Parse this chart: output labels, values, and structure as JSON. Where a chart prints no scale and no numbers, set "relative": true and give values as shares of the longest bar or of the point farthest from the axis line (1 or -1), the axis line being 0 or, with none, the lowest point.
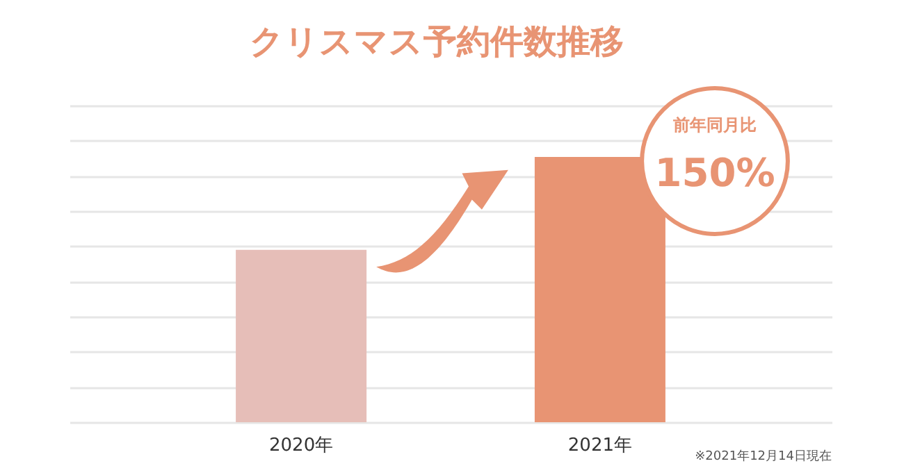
{
  "chart_data": {
    "type": "bar",
    "title": "クリスマス予約件数推移",
    "categories": [
      "2020年",
      "2021年"
    ],
    "relative": true,
    "series": [
      {
        "values": [
          0.65,
          1
        ],
        "colors": [
          "#e6beb8",
          "#e89473"
        ]
      }
    ],
    "grid": "y",
    "annotations": [
      "前年同月比",
      "150%",
      "※2021年12月14日現在"
    ]
  }
}
